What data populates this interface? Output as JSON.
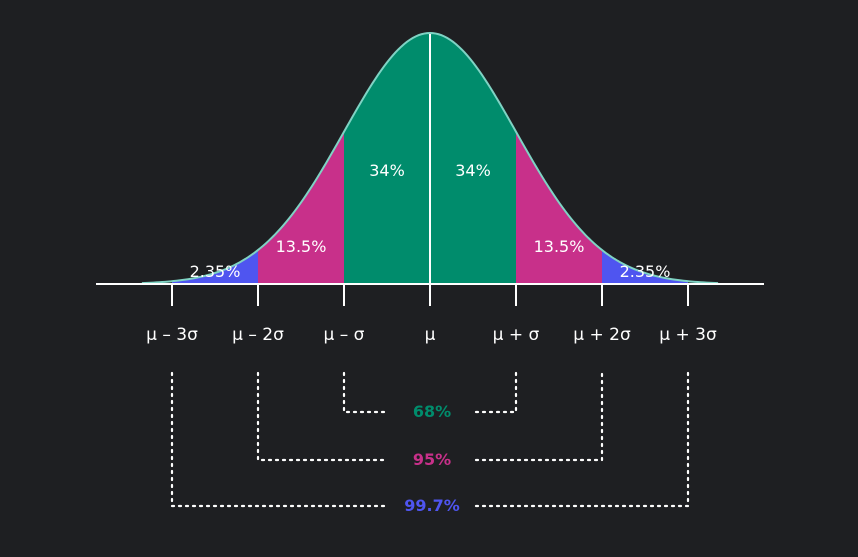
{
  "colors": {
    "background": "#1e1f22",
    "green": "#008c6c",
    "magenta": "#c8308a",
    "blue": "#4f55f0",
    "curve": "#7fd3c4",
    "axis": "#ffffff"
  },
  "regions": [
    {
      "label": "2.35%",
      "from": -3,
      "to": -2,
      "color": "blue"
    },
    {
      "label": "13.5%",
      "from": -2,
      "to": -1,
      "color": "magenta"
    },
    {
      "label": "34%",
      "from": -1,
      "to": 0,
      "color": "green"
    },
    {
      "label": "34%",
      "from": 0,
      "to": 1,
      "color": "green"
    },
    {
      "label": "13.5%",
      "from": 1,
      "to": 2,
      "color": "magenta"
    },
    {
      "label": "2.35%",
      "from": 2,
      "to": 3,
      "color": "blue"
    }
  ],
  "ticks": [
    {
      "z": -3,
      "label": "μ – 3σ"
    },
    {
      "z": -2,
      "label": "μ – 2σ"
    },
    {
      "z": -1,
      "label": "μ – σ"
    },
    {
      "z": 0,
      "label": "μ"
    },
    {
      "z": 1,
      "label": "μ + σ"
    },
    {
      "z": 2,
      "label": "μ + 2σ"
    },
    {
      "z": 3,
      "label": "μ + 3σ"
    }
  ],
  "ranges": [
    {
      "label": "68%",
      "k": 1,
      "color": "green"
    },
    {
      "label": "95%",
      "k": 2,
      "color": "magenta"
    },
    {
      "label": "99.7%",
      "k": 3,
      "color": "blue"
    }
  ]
}
